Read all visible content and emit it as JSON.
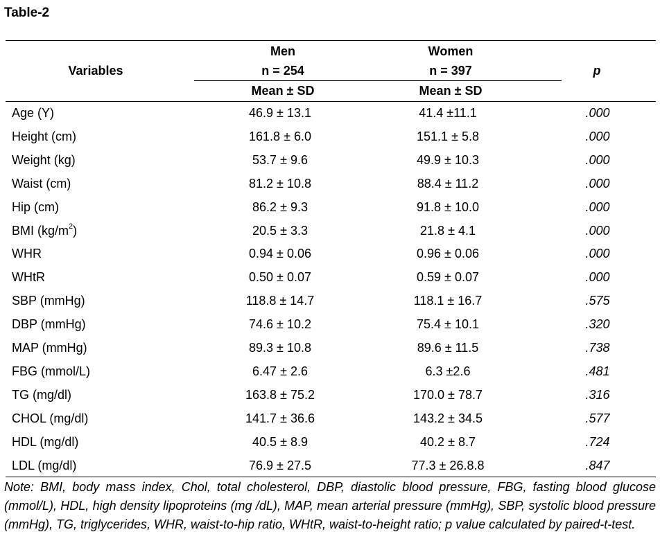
{
  "title": "Table-2",
  "header": {
    "variables": "Variables",
    "men_label": "Men",
    "men_n": "n = 254",
    "women_label": "Women",
    "women_n": "n = 397",
    "stat_label": "Mean ± SD",
    "p_label": "p"
  },
  "rows": [
    {
      "variable": "Age (Y)",
      "men": "46.9 ± 13.1",
      "women": "41.4 ±11.1",
      "p": ".000"
    },
    {
      "variable": "Height (cm)",
      "men": "161.8 ± 6.0",
      "women": "151.1 ± 5.8",
      "p": ".000"
    },
    {
      "variable": "Weight (kg)",
      "men": "53.7 ± 9.6",
      "women": "49.9 ± 10.3",
      "p": ".000"
    },
    {
      "variable": "Waist (cm)",
      "men": "81.2 ± 10.8",
      "women": "88.4 ± 11.2",
      "p": ".000"
    },
    {
      "variable": "Hip (cm)",
      "men": "86.2 ± 9.3",
      "women": "91.8 ± 10.0",
      "p": ".000"
    },
    {
      "variable": "BMI (kg/m",
      "variable_sup": "2",
      "variable_suffix": ")",
      "men": "20.5 ± 3.3",
      "women": "21.8 ± 4.1",
      "p": ".000"
    },
    {
      "variable": "WHR",
      "men": "0.94 ± 0.06",
      "women": "0.96 ± 0.06",
      "p": ".000"
    },
    {
      "variable": "WHtR",
      "men": "0.50 ± 0.07",
      "women": "0.59 ± 0.07",
      "p": ".000"
    },
    {
      "variable": "SBP (mmHg)",
      "men": "118.8 ± 14.7",
      "women": "118.1 ± 16.7",
      "p": ".575"
    },
    {
      "variable": "DBP (mmHg)",
      "men": "74.6 ± 10.2",
      "women": "75.4 ± 10.1",
      "p": ".320"
    },
    {
      "variable": "MAP (mmHg)",
      "men": "89.3 ± 10.8",
      "women": "89.6 ± 11.5",
      "p": ".738"
    },
    {
      "variable": "FBG (mmol/L)",
      "men": "6.47 ± 2.6",
      "women": "6.3 ±2.6",
      "p": ".481"
    },
    {
      "variable": "TG (mg/dl)",
      "men": "163.8 ± 75.2",
      "women": "170.0 ± 78.7",
      "p": ".316"
    },
    {
      "variable": "CHOL (mg/dl)",
      "men": "141.7 ± 36.6",
      "women": "143.2 ± 34.5",
      "p": ".577"
    },
    {
      "variable": "HDL (mg/dl)",
      "men": "40.5 ± 8.9",
      "women": "40.2 ± 8.7",
      "p": ".724"
    },
    {
      "variable": "LDL (mg/dl)",
      "men": "76.9 ± 27.5",
      "women": "77.3 ± 26.8.8",
      "p": ".847"
    }
  ],
  "note": "Note: BMI, body mass index, Chol, total cholesterol, DBP, diastolic blood pressure, FBG, fasting blood glucose (mmol/L), HDL, high density lipoproteins (mg /dL), MAP, mean arterial pressure (mmHg), SBP, systolic blood pressure (mmHg), TG, triglycerides, WHR, waist-to-hip ratio, WHtR, waist-to-height ratio; p value calculated by paired-t-test."
}
